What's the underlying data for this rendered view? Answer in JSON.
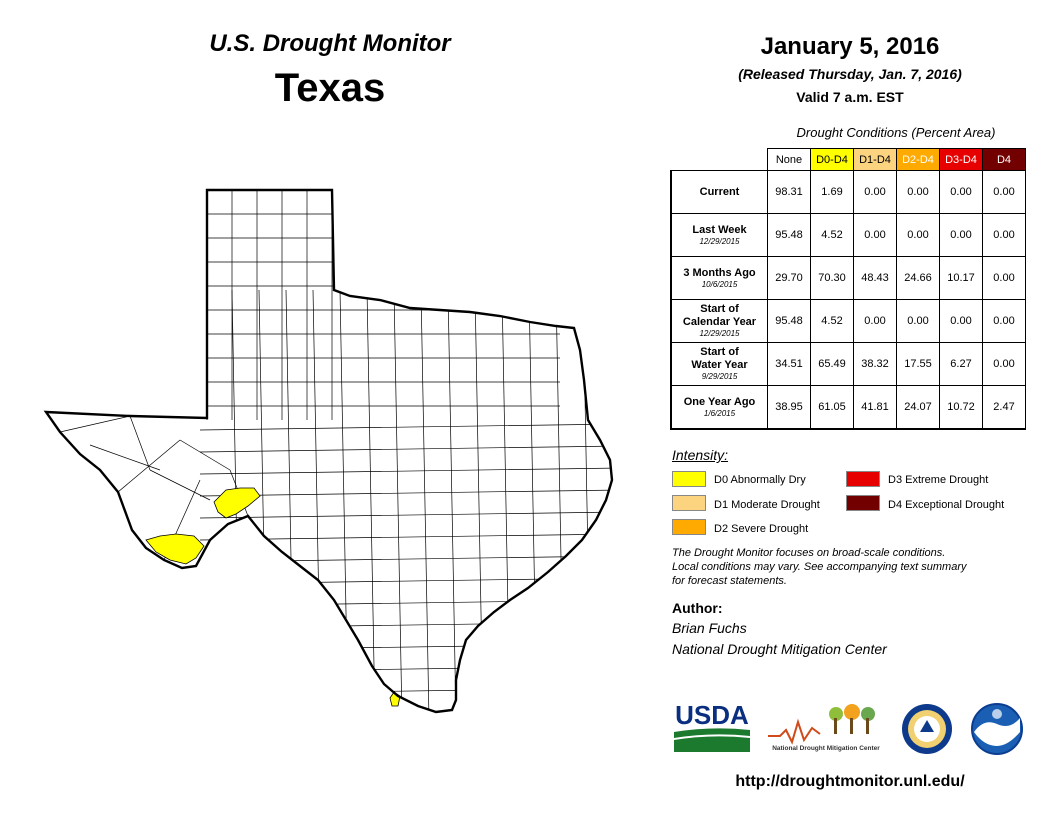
{
  "header": {
    "product": "U.S. Drought Monitor",
    "region": "Texas",
    "date": "January 5, 2016",
    "released": "(Released Thursday, Jan. 7, 2016)",
    "valid": "Valid 7 a.m. EST"
  },
  "table": {
    "title": "Drought Conditions (Percent Area)",
    "columns": [
      {
        "label": "None",
        "color": "#ffffff",
        "text_color": "#000000"
      },
      {
        "label": "D0-D4",
        "color": "#ffff00",
        "text_color": "#000000"
      },
      {
        "label": "D1-D4",
        "color": "#fcd37f",
        "text_color": "#000000"
      },
      {
        "label": "D2-D4",
        "color": "#ffaa00",
        "text_color": "#ffffff"
      },
      {
        "label": "D3-D4",
        "color": "#e60000",
        "text_color": "#ffffff"
      },
      {
        "label": "D4",
        "color": "#730000",
        "text_color": "#ffffff"
      }
    ],
    "rows": [
      {
        "label": "Current",
        "label2": "",
        "date": "",
        "values": [
          "98.31",
          "1.69",
          "0.00",
          "0.00",
          "0.00",
          "0.00"
        ]
      },
      {
        "label": "Last Week",
        "label2": "",
        "date": "12/29/2015",
        "values": [
          "95.48",
          "4.52",
          "0.00",
          "0.00",
          "0.00",
          "0.00"
        ]
      },
      {
        "label": "3 Months Ago",
        "label2": "",
        "date": "10/6/2015",
        "values": [
          "29.70",
          "70.30",
          "48.43",
          "24.66",
          "10.17",
          "0.00"
        ]
      },
      {
        "label": "Start of",
        "label2": "Calendar Year",
        "date": "12/29/2015",
        "values": [
          "95.48",
          "4.52",
          "0.00",
          "0.00",
          "0.00",
          "0.00"
        ]
      },
      {
        "label": "Start of",
        "label2": "Water Year",
        "date": "9/29/2015",
        "values": [
          "34.51",
          "65.49",
          "38.32",
          "17.55",
          "6.27",
          "0.00"
        ]
      },
      {
        "label": "One Year Ago",
        "label2": "",
        "date": "1/6/2015",
        "values": [
          "38.95",
          "61.05",
          "41.81",
          "24.07",
          "10.72",
          "2.47"
        ]
      }
    ]
  },
  "legend": {
    "title": "Intensity:",
    "items": [
      {
        "label": "D0 Abnormally Dry",
        "color": "#ffff00"
      },
      {
        "label": "D1 Moderate Drought",
        "color": "#fcd37f"
      },
      {
        "label": "D2 Severe Drought",
        "color": "#ffaa00"
      },
      {
        "label": "D3 Extreme Drought",
        "color": "#e60000"
      },
      {
        "label": "D4 Exceptional Drought",
        "color": "#730000"
      }
    ]
  },
  "note": {
    "line1": "The Drought Monitor focuses on broad-scale conditions.",
    "line2": "Local conditions may vary. See accompanying text summary",
    "line3": "for forecast statements."
  },
  "author": {
    "heading": "Author:",
    "name": "Brian Fuchs",
    "org": "National Drought Mitigation Center"
  },
  "logos": {
    "usda": "USDA",
    "ndmc": "National Drought Mitigation Center"
  },
  "map": {
    "drought_color": "#ffff00"
  },
  "url": "http://droughtmonitor.unl.edu/"
}
